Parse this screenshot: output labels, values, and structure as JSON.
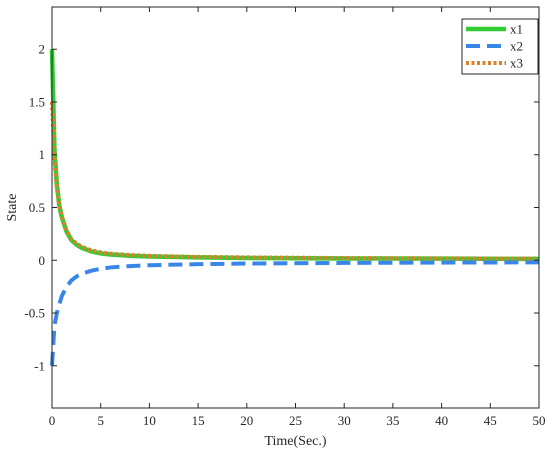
{
  "chart_data": {
    "type": "line",
    "xlabel": "Time(Sec.)",
    "ylabel": "State",
    "xlim": [
      0,
      50
    ],
    "ylim": [
      -1.4,
      2.4
    ],
    "xticks": [
      0,
      5,
      10,
      15,
      20,
      25,
      30,
      35,
      40,
      45,
      50
    ],
    "yticks": [
      -1,
      -0.5,
      0,
      0.5,
      1,
      1.5,
      2
    ],
    "ytick_labels": [
      "-1",
      "-0.5",
      "0",
      "0.5",
      "1",
      "1.5",
      "2"
    ],
    "grid": false,
    "legend_position": "top-right",
    "series": [
      {
        "name": "x1",
        "color": "#33cc33",
        "style": "solid",
        "x": [
          0,
          0.25,
          0.5,
          0.75,
          1,
          1.5,
          2,
          2.5,
          3,
          4,
          5,
          6,
          8,
          10,
          15,
          20,
          30,
          40,
          50
        ],
        "y": [
          2.0,
          1.05,
          0.72,
          0.52,
          0.41,
          0.27,
          0.19,
          0.15,
          0.12,
          0.085,
          0.065,
          0.055,
          0.043,
          0.036,
          0.027,
          0.022,
          0.017,
          0.015,
          0.013
        ]
      },
      {
        "name": "x2",
        "color": "#3a86e8",
        "style": "dashed",
        "x": [
          0,
          0.25,
          0.5,
          0.75,
          1,
          1.5,
          2,
          2.5,
          3,
          4,
          5,
          6,
          8,
          10,
          15,
          20,
          30,
          40,
          50
        ],
        "y": [
          -1.0,
          -0.62,
          -0.5,
          -0.42,
          -0.34,
          -0.25,
          -0.19,
          -0.155,
          -0.13,
          -0.1,
          -0.08,
          -0.068,
          -0.055,
          -0.047,
          -0.037,
          -0.031,
          -0.025,
          -0.022,
          -0.02
        ]
      },
      {
        "name": "x3",
        "color": "#d9822b",
        "style": "dotted",
        "x": [
          0,
          0.25,
          0.5,
          0.75,
          1,
          1.5,
          2,
          2.5,
          3,
          4,
          5,
          6,
          8,
          10,
          15,
          20,
          30,
          40,
          50
        ],
        "y": [
          1.5,
          0.95,
          0.68,
          0.52,
          0.42,
          0.28,
          0.2,
          0.16,
          0.13,
          0.095,
          0.075,
          0.063,
          0.05,
          0.042,
          0.032,
          0.027,
          0.021,
          0.018,
          0.016
        ]
      }
    ]
  }
}
